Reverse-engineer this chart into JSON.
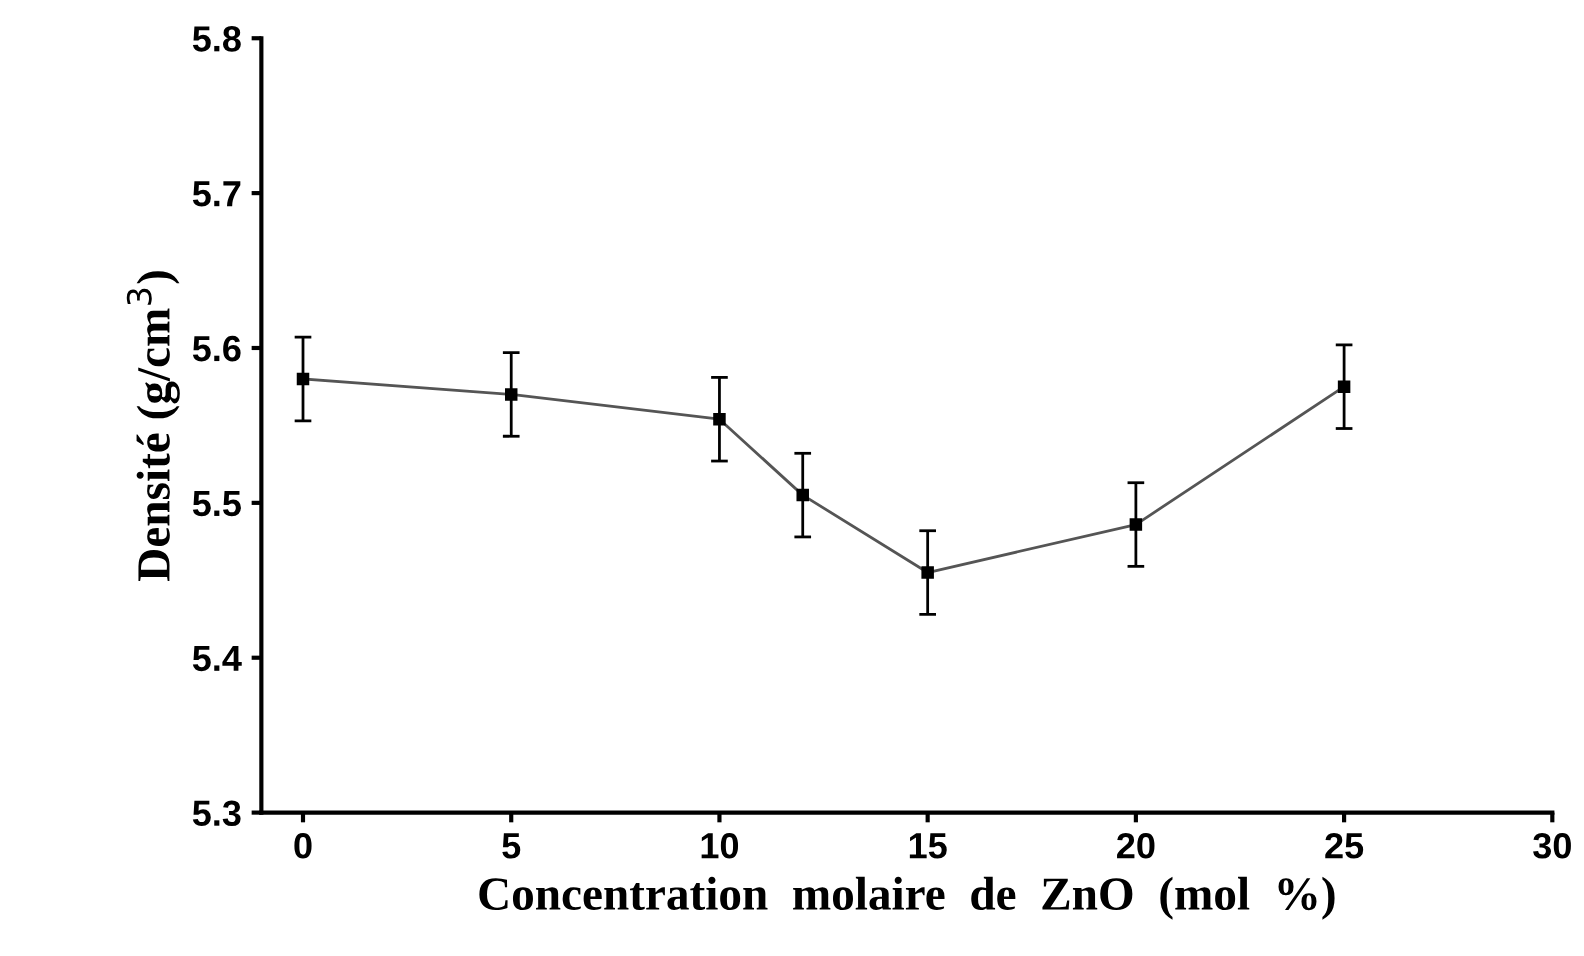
{
  "chart_data": {
    "type": "line",
    "xlabel": "Concentration  molaire  de  ZnO  (mol  %)",
    "ylabel": "Densité (g/cm$^{3}$)",
    "x": [
      0,
      5,
      10,
      12,
      15,
      20,
      25
    ],
    "series": [
      {
        "color": "#000000",
        "values": [
          5.58,
          5.57,
          5.554,
          5.505,
          5.455,
          5.486,
          5.575
        ],
        "errors": [
          0.027,
          0.027,
          0.027,
          0.027,
          0.027,
          0.027,
          0.027
        ]
      }
    ],
    "xlim": [
      -1,
      30
    ],
    "xticks": [
      0,
      5,
      10,
      15,
      20,
      25,
      30
    ],
    "ylim": [
      5.3,
      5.8
    ],
    "yticks": [
      5.3,
      5.4,
      5.5,
      5.6,
      5.7,
      5.8
    ],
    "grid": false,
    "legend": false,
    "marker": "square",
    "line_style": "solid"
  }
}
